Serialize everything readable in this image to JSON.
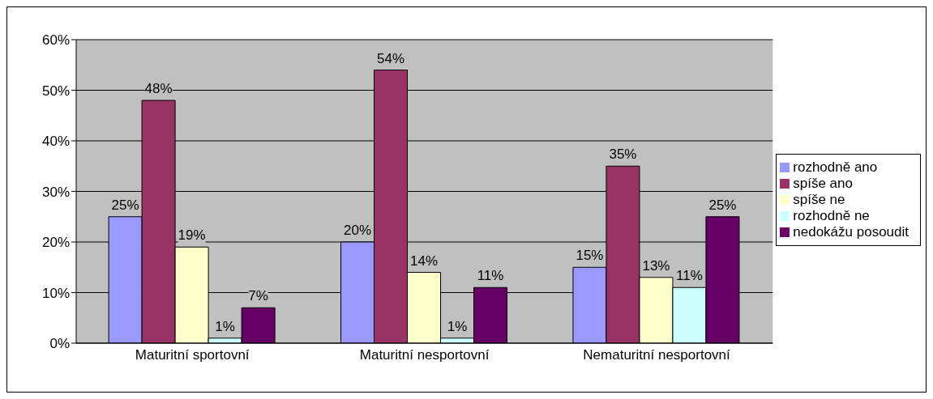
{
  "chart_data": {
    "type": "bar",
    "categories": [
      "Maturitní sportovní",
      "Maturitní nesportovní",
      "Nematuritní nesportovní"
    ],
    "series": [
      {
        "name": "rozhodně ano",
        "color": "#9999ff",
        "values": [
          25,
          20,
          15
        ],
        "value_labels": [
          "25%",
          "20%",
          "15%"
        ]
      },
      {
        "name": "spíše ano",
        "color": "#993366",
        "values": [
          48,
          54,
          35
        ],
        "value_labels": [
          "48%",
          "54%",
          "35%"
        ]
      },
      {
        "name": "spíše ne",
        "color": "#ffffcc",
        "values": [
          19,
          14,
          13
        ],
        "value_labels": [
          "19%",
          "14%",
          "13%"
        ]
      },
      {
        "name": "rozhodně ne",
        "color": "#ccffff",
        "values": [
          1,
          1,
          11
        ],
        "value_labels": [
          "1%",
          "1%",
          "11%"
        ]
      },
      {
        "name": "nedokážu posoudit",
        "color": "#660066",
        "values": [
          7,
          11,
          25
        ],
        "value_labels": [
          "7%",
          "11%",
          "25%"
        ]
      }
    ],
    "ylim": [
      0,
      60
    ],
    "yticks": [
      {
        "value": 0,
        "label": "0%"
      },
      {
        "value": 10,
        "label": "10%"
      },
      {
        "value": 20,
        "label": "20%"
      },
      {
        "value": 30,
        "label": "30%"
      },
      {
        "value": 40,
        "label": "40%"
      },
      {
        "value": 50,
        "label": "50%"
      },
      {
        "value": 60,
        "label": "60%"
      }
    ],
    "grid": "y",
    "legend": "right"
  }
}
